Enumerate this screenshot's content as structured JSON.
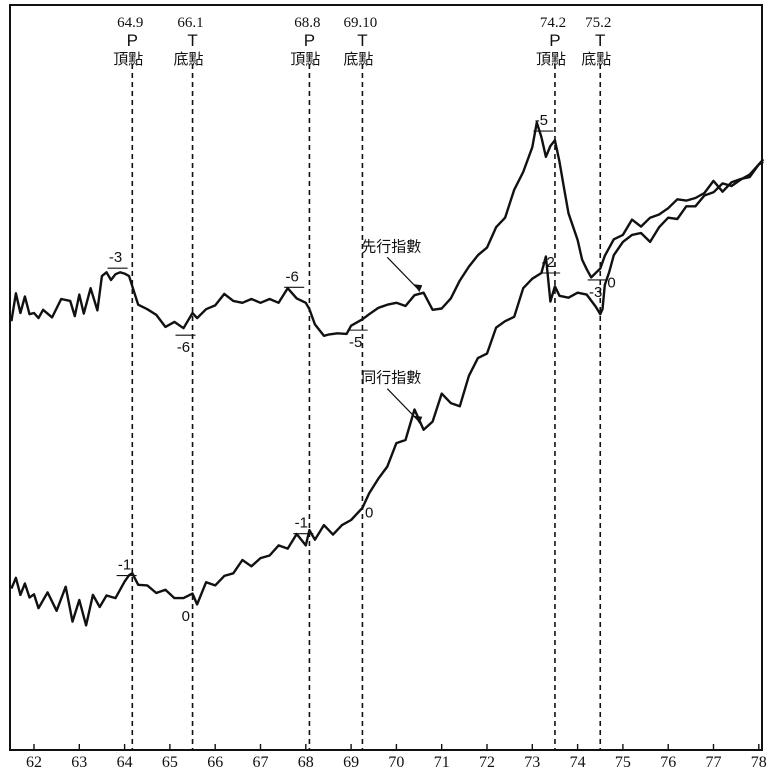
{
  "chart_data": {
    "type": "line",
    "title": "",
    "xlabel": "",
    "ylabel": "",
    "x_ticks": [
      "62",
      "63",
      "64",
      "65",
      "66",
      "67",
      "68",
      "69",
      "70",
      "71",
      "72",
      "73",
      "74",
      "75",
      "76",
      "77",
      "78"
    ],
    "xlim": [
      61.5,
      78.1
    ],
    "ylim": [
      0,
      100
    ],
    "reference_points": [
      {
        "date": "64.9",
        "type": "P",
        "label": "頂點",
        "x": 64.17
      },
      {
        "date": "66.1",
        "type": "T",
        "label": "底點",
        "x": 65.5
      },
      {
        "date": "68.8",
        "type": "P",
        "label": "頂點",
        "x": 68.08
      },
      {
        "date": "69.10",
        "type": "T",
        "label": "底點",
        "x": 69.25
      },
      {
        "date": "74.2",
        "type": "P",
        "label": "頂點",
        "x": 73.5
      },
      {
        "date": "75.2",
        "type": "T",
        "label": "底點",
        "x": 74.5
      }
    ],
    "series": [
      {
        "name": "先行指數",
        "label_x": 70.55,
        "x": [
          61.5,
          61.6,
          61.7,
          61.8,
          61.9,
          62.0,
          62.1,
          62.2,
          62.4,
          62.6,
          62.8,
          62.9,
          63.0,
          63.1,
          63.25,
          63.4,
          63.5,
          63.6,
          63.7,
          63.8,
          63.9,
          64.0,
          64.1,
          64.17,
          64.3,
          64.5,
          64.7,
          64.9,
          65.1,
          65.3,
          65.5,
          65.6,
          65.8,
          66.0,
          66.2,
          66.4,
          66.6,
          66.8,
          67.0,
          67.2,
          67.4,
          67.6,
          67.8,
          68.0,
          68.08,
          68.2,
          68.4,
          68.5,
          68.7,
          68.9,
          69.0,
          69.25,
          69.4,
          69.6,
          69.8,
          70.0,
          70.2,
          70.4,
          70.6,
          70.8,
          71.0,
          71.2,
          71.4,
          71.6,
          71.8,
          72.0,
          72.2,
          72.4,
          72.6,
          72.8,
          73.0,
          73.1,
          73.2,
          73.3,
          73.4,
          73.5,
          73.6,
          73.7,
          73.8,
          74.0,
          74.1,
          74.2,
          74.3,
          74.5,
          74.6,
          74.8,
          75.0,
          75.2,
          75.4,
          75.6,
          75.8,
          76.0,
          76.2,
          76.4,
          76.6,
          76.8,
          77.0,
          77.2,
          77.4,
          77.6,
          77.8,
          78.0,
          78.1
        ],
        "values": [
          56.5,
          60.9,
          57.8,
          60.4,
          57.6,
          57.8,
          57.0,
          58.3,
          57.1,
          60.0,
          59.7,
          57.3,
          60.7,
          57.7,
          61.7,
          58.2,
          63.6,
          64.2,
          63.0,
          63.9,
          64.2,
          64.0,
          63.6,
          62.0,
          59.1,
          58.4,
          57.5,
          55.6,
          56.4,
          55.4,
          57.8,
          57.0,
          58.4,
          59.0,
          60.8,
          59.7,
          59.4,
          60.0,
          59.4,
          60.0,
          59.4,
          61.7,
          60.1,
          59.4,
          58.4,
          56.0,
          54.2,
          54.4,
          54.6,
          54.5,
          55.8,
          56.8,
          57.6,
          58.6,
          59.1,
          59.4,
          58.9,
          60.6,
          61.0,
          58.3,
          58.5,
          60.1,
          62.9,
          65.1,
          66.9,
          68.1,
          71.3,
          72.8,
          77.2,
          80.0,
          83.9,
          87.8,
          85.5,
          82.4,
          84.1,
          85.0,
          81.6,
          77.5,
          73.5,
          69.3,
          66.2,
          64.7,
          63.4,
          64.8,
          66.8,
          69.4,
          70.1,
          72.5,
          71.4,
          72.8,
          73.3,
          74.3,
          75.7,
          75.5,
          75.9,
          76.7,
          78.6,
          76.9,
          78.4,
          78.9,
          79.2,
          81.2,
          81.6
        ]
      },
      {
        "name": "同行指數",
        "label_x": 70.55,
        "x": [
          61.5,
          61.6,
          61.7,
          61.8,
          61.9,
          62.0,
          62.1,
          62.3,
          62.5,
          62.7,
          62.85,
          63.0,
          63.15,
          63.3,
          63.45,
          63.6,
          63.8,
          64.0,
          64.1,
          64.17,
          64.3,
          64.5,
          64.7,
          64.9,
          65.1,
          65.3,
          65.5,
          65.6,
          65.8,
          66.0,
          66.2,
          66.4,
          66.6,
          66.8,
          67.0,
          67.2,
          67.4,
          67.6,
          67.8,
          68.0,
          68.08,
          68.2,
          68.4,
          68.6,
          68.8,
          69.0,
          69.25,
          69.4,
          69.6,
          69.8,
          70.0,
          70.2,
          70.4,
          70.6,
          70.8,
          71.0,
          71.2,
          71.4,
          71.6,
          71.8,
          72.0,
          72.2,
          72.4,
          72.6,
          72.8,
          73.0,
          73.2,
          73.3,
          73.4,
          73.5,
          73.6,
          73.8,
          74.0,
          74.2,
          74.4,
          74.5,
          74.55,
          74.6,
          74.7,
          74.8,
          75.0,
          75.2,
          75.4,
          75.6,
          75.8,
          76.0,
          76.2,
          76.4,
          76.6,
          76.8,
          77.0,
          77.2,
          77.4,
          77.6,
          77.8,
          78.0,
          78.1
        ],
        "values": [
          14.4,
          16.1,
          13.4,
          15.2,
          13.0,
          13.5,
          11.3,
          13.8,
          10.9,
          14.7,
          9.2,
          12.6,
          8.6,
          13.4,
          11.5,
          13.3,
          12.9,
          15.5,
          16.5,
          16.8,
          15.0,
          14.9,
          13.7,
          14.2,
          12.9,
          12.9,
          13.6,
          11.9,
          15.4,
          14.9,
          16.4,
          16.8,
          18.9,
          17.9,
          19.2,
          19.6,
          21.2,
          20.7,
          23.0,
          21.2,
          23.6,
          22.1,
          24.4,
          22.9,
          24.4,
          25.2,
          27.1,
          29.4,
          31.7,
          33.6,
          37.3,
          37.8,
          42.6,
          39.4,
          40.7,
          45.1,
          43.6,
          43.1,
          47.9,
          50.7,
          51.4,
          55.5,
          56.5,
          57.2,
          61.7,
          63.2,
          64.1,
          66.7,
          59.6,
          62.0,
          60.5,
          60.2,
          61.0,
          60.7,
          58.8,
          57.6,
          58.4,
          62.2,
          64.3,
          66.9,
          69.0,
          70.1,
          70.4,
          69.0,
          71.3,
          72.8,
          72.6,
          74.6,
          74.6,
          76.3,
          76.8,
          78.2,
          77.8,
          78.8,
          79.6,
          81.2,
          82.0
        ]
      }
    ],
    "lag_annotations": [
      {
        "text": "-3",
        "x": 63.8,
        "series": 0
      },
      {
        "text": "-6",
        "x": 65.3,
        "series": 0
      },
      {
        "text": "-6",
        "x": 67.7,
        "series": 0
      },
      {
        "text": "-5",
        "x": 69.1,
        "series": 0
      },
      {
        "text": "-5",
        "x": 73.2,
        "series": 0
      },
      {
        "text": "-3",
        "x": 74.4,
        "series": 0
      },
      {
        "text": "-1",
        "x": 64.0,
        "series": 1
      },
      {
        "text": "0",
        "x": 65.35,
        "series": 1
      },
      {
        "text": "-1",
        "x": 67.9,
        "series": 1
      },
      {
        "text": "0",
        "x": 69.4,
        "series": 1
      },
      {
        "text": "-2",
        "x": 73.35,
        "series": 1
      },
      {
        "text": "0",
        "x": 74.75,
        "series": 1
      }
    ]
  }
}
